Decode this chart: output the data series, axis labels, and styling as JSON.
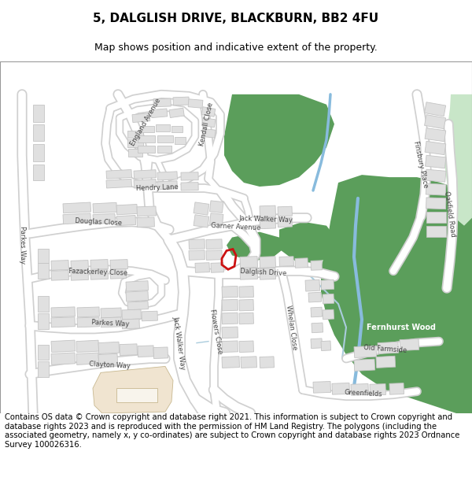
{
  "title": "5, DALGLISH DRIVE, BLACKBURN, BB2 4FU",
  "subtitle": "Map shows position and indicative extent of the property.",
  "footer": "Contains OS data © Crown copyright and database right 2021. This information is subject to Crown copyright and database rights 2023 and is reproduced with the permission of HM Land Registry. The polygons (including the associated geometry, namely x, y co-ordinates) are subject to Crown copyright and database rights 2023 Ordnance Survey 100026316.",
  "map_bg": "#efefef",
  "road_color": "#ffffff",
  "road_outline": "#d0d0d0",
  "building_color": "#e0e0e0",
  "building_outline": "#c4c4c4",
  "green_color": "#5b9e5b",
  "green_light": "#c8e6c8",
  "water_color": "#aacce8",
  "property_color": "#cc1111",
  "school_color": "#f0e4d0",
  "title_fontsize": 11,
  "subtitle_fontsize": 9,
  "footer_fontsize": 7.2,
  "label_fontsize": 6.0,
  "label_color": "#444444"
}
